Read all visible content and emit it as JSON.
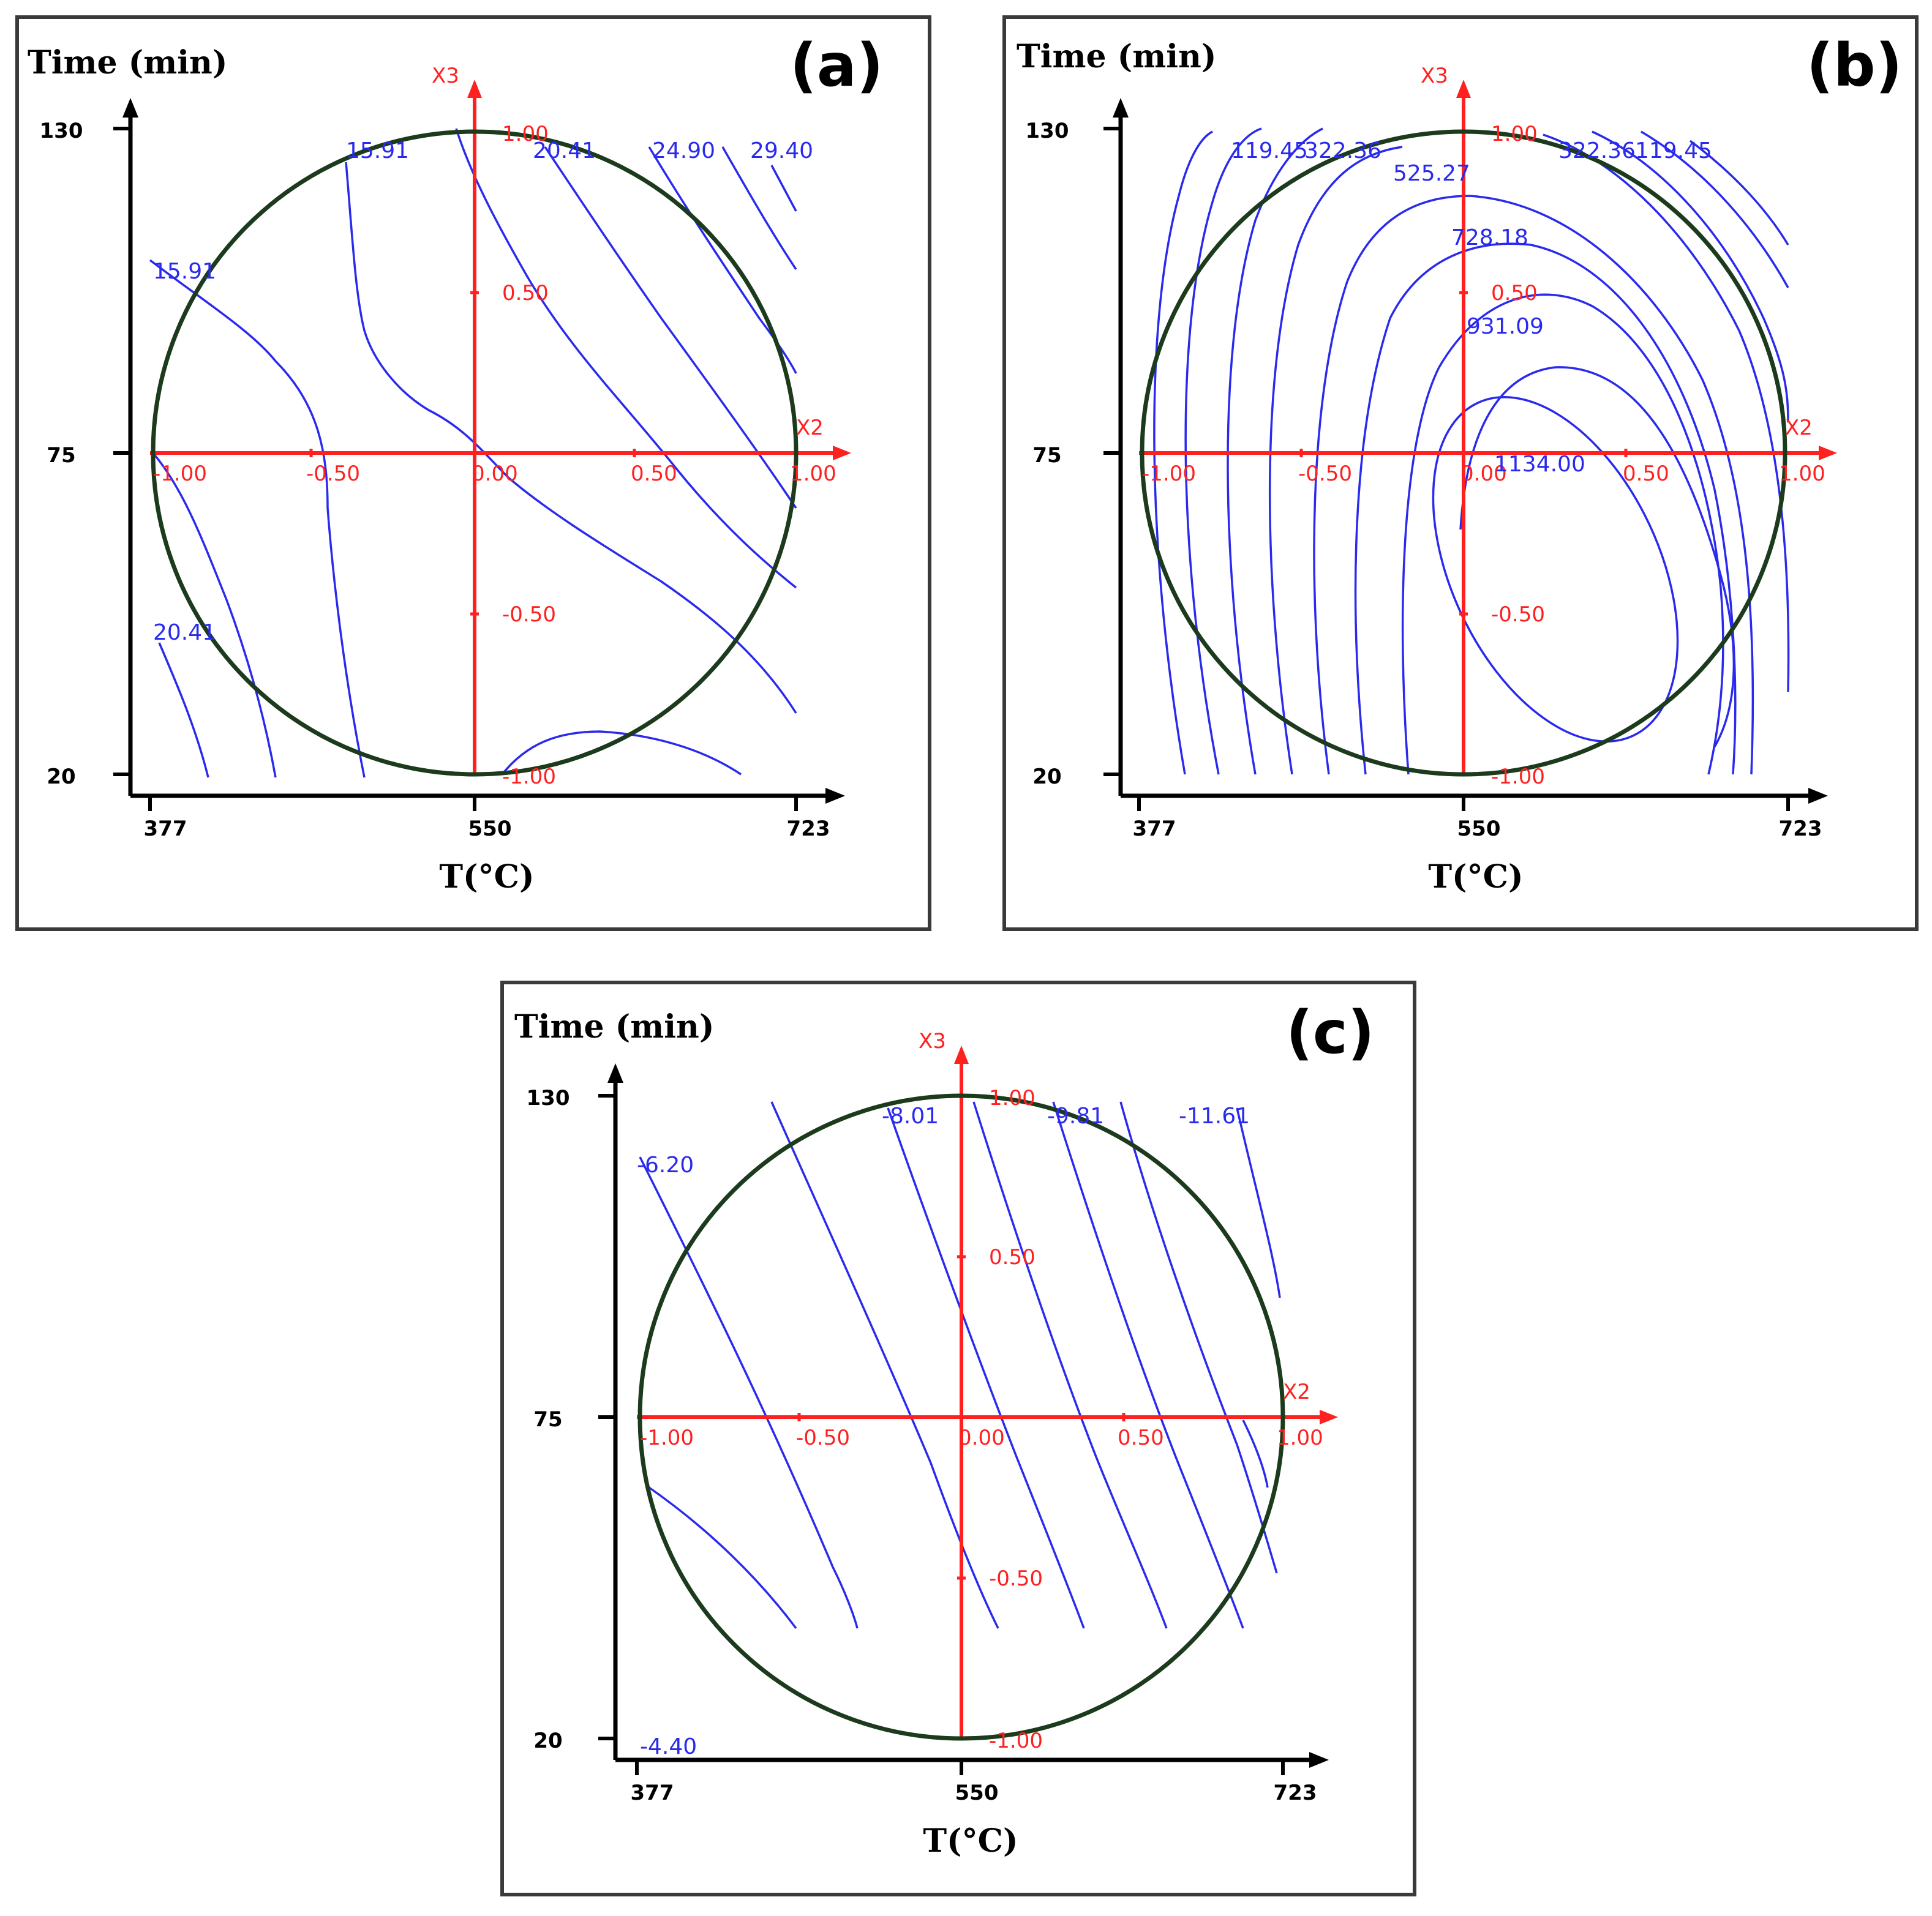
{
  "chart_data": [
    {
      "type": "contour",
      "panel_label": "(a)",
      "ylabel": "Time (min)",
      "xlabel": "T(°C)",
      "y_ticks": [
        "130",
        "75",
        "20"
      ],
      "x_ticks": [
        "377",
        "550",
        "723"
      ],
      "coded_axes": {
        "x_name": "X2",
        "y_name": "X3",
        "x_ticks": [
          "-1.00",
          "-0.50",
          "0.00",
          "0.50",
          "1.00"
        ],
        "y_ticks": [
          "1.00",
          "0.50",
          "-0.50",
          "-1.00"
        ]
      },
      "contour_labels": [
        "15.91",
        "20.41",
        "24.90",
        "29.40",
        "15.91",
        "20.41"
      ]
    },
    {
      "type": "contour",
      "panel_label": "(b)",
      "ylabel": "Time (min)",
      "xlabel": "T(°C)",
      "y_ticks": [
        "130",
        "75",
        "20"
      ],
      "x_ticks": [
        "377",
        "550",
        "723"
      ],
      "coded_axes": {
        "x_name": "X2",
        "y_name": "X3",
        "x_ticks": [
          "-1.00",
          "-0.50",
          "0.00",
          "0.50",
          "1.00"
        ],
        "y_ticks": [
          "1.00",
          "0.50",
          "-0.50",
          "-1.00"
        ]
      },
      "contour_labels": [
        "119.45",
        "322.36",
        "525.27",
        "728.18",
        "931.09",
        "1134.00",
        "322.36",
        "119.45"
      ]
    },
    {
      "type": "contour",
      "panel_label": "(c)",
      "ylabel": "Time (min)",
      "xlabel": "T(°C)",
      "y_ticks": [
        "130",
        "75",
        "20"
      ],
      "x_ticks": [
        "377",
        "550",
        "723"
      ],
      "coded_axes": {
        "x_name": "X2",
        "y_name": "X3",
        "x_ticks": [
          "-1.00",
          "-0.50",
          "0.00",
          "0.50",
          "1.00"
        ],
        "y_ticks": [
          "1.00",
          "0.50",
          "-0.50",
          "-1.00"
        ]
      },
      "contour_labels": [
        "-6.20",
        "-8.01",
        "-9.81",
        "-11.61",
        "-4.40"
      ]
    }
  ]
}
